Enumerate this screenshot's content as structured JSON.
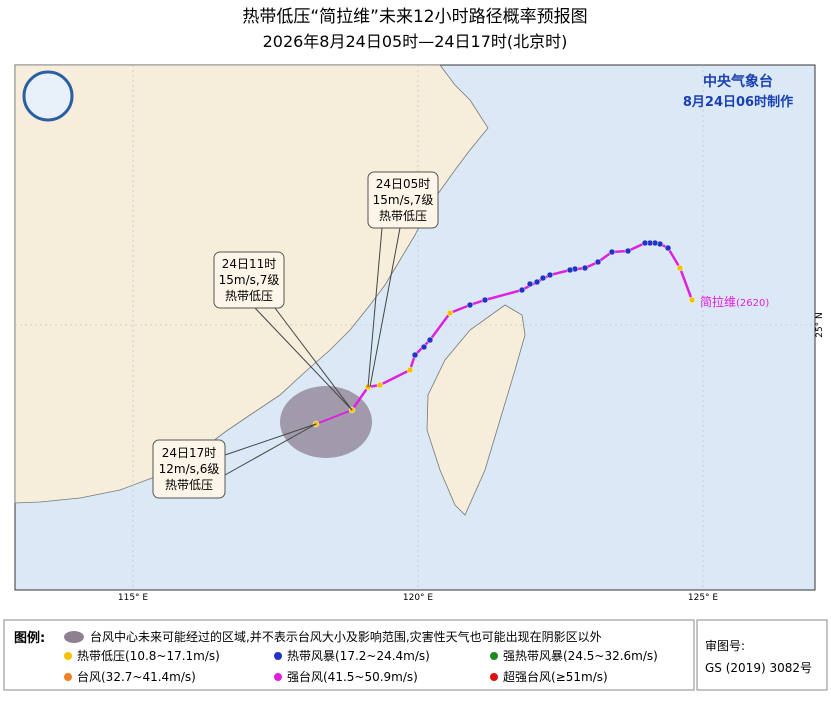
{
  "header": {
    "title": "热带低压“简拉维”未来12小时路径概率预报图",
    "subtitle": "2026年8月24日05时—24日17时(北京时)"
  },
  "agency": {
    "name": "中央气象台",
    "issued": "8月24日06时制作"
  },
  "storm": {
    "name": "简拉维",
    "number": "(2620)"
  },
  "callouts": [
    {
      "time": "24日05时",
      "wind": "15m/s,7级",
      "grade": "热带低压"
    },
    {
      "time": "24日11时",
      "wind": "15m/s,7级",
      "grade": "热带低压"
    },
    {
      "time": "24日17时",
      "wind": "12m/s,6级",
      "grade": "热带低压"
    }
  ],
  "axes": {
    "lon": [
      "115° E",
      "120° E",
      "125° E"
    ],
    "lat": [
      "25° N"
    ]
  },
  "legend": {
    "title": "图例:",
    "cone": "台风中心未来可能经过的区域,并不表示台风大小及影响范围,灾害性天气也可能出现在阴影区以外",
    "items": [
      {
        "label": "热带低压(10.8~17.1m/s)",
        "color": "#f2c200"
      },
      {
        "label": "热带风暴(17.2~24.4m/s)",
        "color": "#1f33c4"
      },
      {
        "label": "强热带风暴(24.5~32.6m/s)",
        "color": "#1e8a1e"
      },
      {
        "label": "台风(32.7~41.4m/s)",
        "color": "#f08020"
      },
      {
        "label": "强台风(41.5~50.9m/s)",
        "color": "#e020e0"
      },
      {
        "label": "超强台风(≥51m/s)",
        "color": "#e01010"
      }
    ]
  },
  "review": {
    "label": "审图号:",
    "number": "GS (2019) 3082号"
  }
}
